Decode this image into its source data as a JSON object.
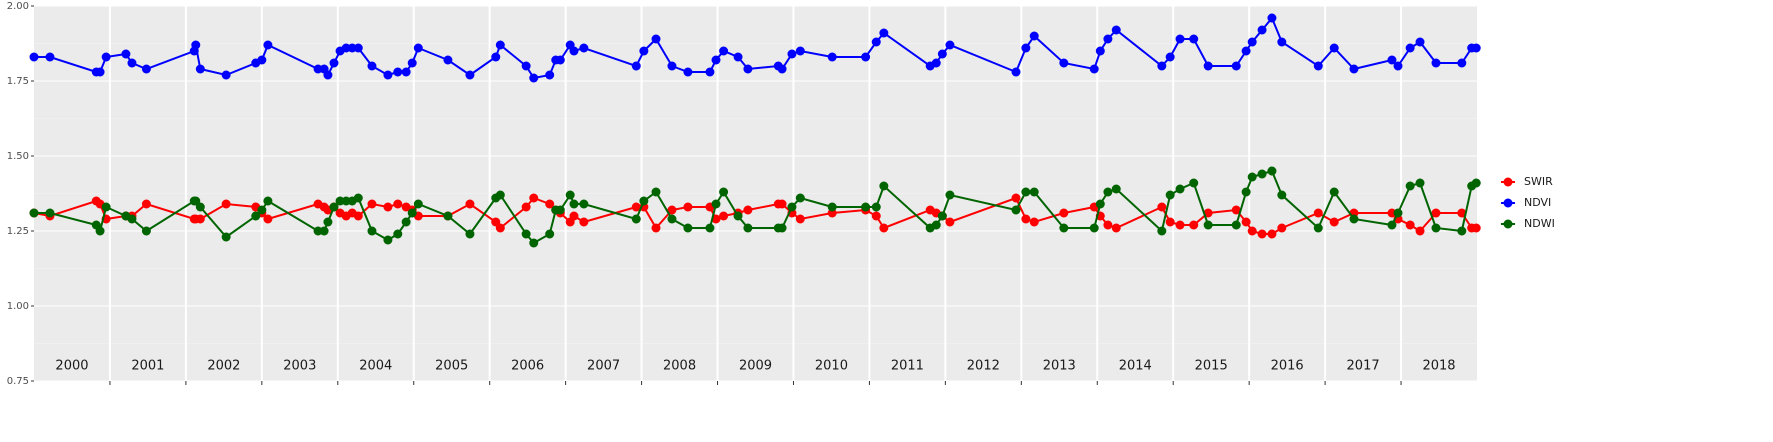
{
  "chart_data": {
    "type": "line",
    "x": [
      2000.0,
      2000.21,
      2000.82,
      2000.87,
      2000.95,
      2001.21,
      2001.29,
      2001.48,
      2002.11,
      2002.13,
      2002.19,
      2002.53,
      2002.92,
      2003.0,
      2003.08,
      2003.74,
      2003.82,
      2003.87,
      2003.95,
      2004.03,
      2004.11,
      2004.19,
      2004.27,
      2004.45,
      2004.66,
      2004.79,
      2004.9,
      2004.98,
      2005.06,
      2005.45,
      2005.74,
      2006.08,
      2006.14,
      2006.48,
      2006.58,
      2006.79,
      2006.87,
      2006.93,
      2007.06,
      2007.11,
      2007.24,
      2007.93,
      2008.03,
      2008.19,
      2008.4,
      2008.61,
      2008.9,
      2008.98,
      2009.08,
      2009.27,
      2009.4,
      2009.8,
      2009.85,
      2009.98,
      2010.09,
      2010.51,
      2010.95,
      2011.09,
      2011.19,
      2011.8,
      2011.88,
      2011.96,
      2012.06,
      2012.93,
      2013.06,
      2013.17,
      2013.56,
      2013.96,
      2014.04,
      2014.14,
      2014.25,
      2014.85,
      2014.96,
      2015.09,
      2015.27,
      2015.46,
      2015.83,
      2015.96,
      2016.04,
      2016.17,
      2016.3,
      2016.43,
      2016.91,
      2017.12,
      2017.38,
      2017.88,
      2017.96,
      2018.12,
      2018.25,
      2018.46,
      2018.8,
      2018.93,
      2018.99
    ],
    "series": [
      {
        "name": "SWIR",
        "color": "#ff0000",
        "values": [
          1.31,
          1.3,
          1.35,
          1.34,
          1.29,
          1.3,
          1.3,
          1.34,
          1.29,
          1.29,
          1.29,
          1.34,
          1.33,
          1.31,
          1.29,
          1.34,
          1.33,
          1.32,
          1.33,
          1.31,
          1.3,
          1.31,
          1.3,
          1.34,
          1.33,
          1.34,
          1.33,
          1.32,
          1.3,
          1.3,
          1.34,
          1.28,
          1.26,
          1.33,
          1.36,
          1.34,
          1.32,
          1.31,
          1.28,
          1.3,
          1.28,
          1.33,
          1.33,
          1.26,
          1.32,
          1.33,
          1.33,
          1.29,
          1.3,
          1.31,
          1.32,
          1.34,
          1.34,
          1.31,
          1.29,
          1.31,
          1.32,
          1.3,
          1.26,
          1.32,
          1.31,
          1.3,
          1.28,
          1.36,
          1.29,
          1.28,
          1.31,
          1.33,
          1.3,
          1.27,
          1.26,
          1.33,
          1.28,
          1.27,
          1.27,
          1.31,
          1.32,
          1.28,
          1.25,
          1.24,
          1.24,
          1.26,
          1.31,
          1.28,
          1.31,
          1.31,
          1.29,
          1.27,
          1.25,
          1.31,
          1.31,
          1.26,
          1.26
        ]
      },
      {
        "name": "NDVI",
        "color": "#0000ff",
        "values": [
          1.83,
          1.83,
          1.78,
          1.78,
          1.83,
          1.84,
          1.81,
          1.79,
          1.85,
          1.87,
          1.79,
          1.77,
          1.81,
          1.82,
          1.87,
          1.79,
          1.79,
          1.77,
          1.81,
          1.85,
          1.86,
          1.86,
          1.86,
          1.8,
          1.77,
          1.78,
          1.78,
          1.81,
          1.86,
          1.82,
          1.77,
          1.83,
          1.87,
          1.8,
          1.76,
          1.77,
          1.82,
          1.82,
          1.87,
          1.85,
          1.86,
          1.8,
          1.85,
          1.89,
          1.8,
          1.78,
          1.78,
          1.82,
          1.85,
          1.83,
          1.79,
          1.8,
          1.79,
          1.84,
          1.85,
          1.83,
          1.83,
          1.88,
          1.91,
          1.8,
          1.81,
          1.84,
          1.87,
          1.78,
          1.86,
          1.9,
          1.81,
          1.79,
          1.85,
          1.89,
          1.92,
          1.8,
          1.83,
          1.89,
          1.89,
          1.8,
          1.8,
          1.85,
          1.88,
          1.92,
          1.96,
          1.88,
          1.8,
          1.86,
          1.79,
          1.82,
          1.8,
          1.86,
          1.88,
          1.81,
          1.81,
          1.86,
          1.86
        ]
      },
      {
        "name": "NDWI",
        "color": "#006400",
        "values": [
          1.31,
          1.31,
          1.27,
          1.25,
          1.33,
          1.3,
          1.29,
          1.25,
          1.35,
          1.35,
          1.33,
          1.23,
          1.3,
          1.32,
          1.35,
          1.25,
          1.25,
          1.28,
          1.33,
          1.35,
          1.35,
          1.35,
          1.36,
          1.25,
          1.22,
          1.24,
          1.28,
          1.31,
          1.34,
          1.3,
          1.24,
          1.36,
          1.37,
          1.24,
          1.21,
          1.24,
          1.32,
          1.32,
          1.37,
          1.34,
          1.34,
          1.29,
          1.35,
          1.38,
          1.29,
          1.26,
          1.26,
          1.34,
          1.38,
          1.3,
          1.26,
          1.26,
          1.26,
          1.33,
          1.36,
          1.33,
          1.33,
          1.33,
          1.4,
          1.26,
          1.27,
          1.3,
          1.37,
          1.32,
          1.38,
          1.38,
          1.26,
          1.26,
          1.34,
          1.38,
          1.39,
          1.25,
          1.37,
          1.39,
          1.41,
          1.27,
          1.27,
          1.38,
          1.43,
          1.44,
          1.45,
          1.37,
          1.26,
          1.38,
          1.29,
          1.27,
          1.31,
          1.4,
          1.41,
          1.26,
          1.25,
          1.4,
          1.41
        ]
      }
    ],
    "xlim": [
      2000,
      2019
    ],
    "xticks": [
      {
        "value": 2000.5,
        "label": "2000"
      },
      {
        "value": 2001.5,
        "label": "2001"
      },
      {
        "value": 2002.5,
        "label": "2002"
      },
      {
        "value": 2003.5,
        "label": "2003"
      },
      {
        "value": 2004.5,
        "label": "2004"
      },
      {
        "value": 2005.5,
        "label": "2005"
      },
      {
        "value": 2006.5,
        "label": "2006"
      },
      {
        "value": 2007.5,
        "label": "2007"
      },
      {
        "value": 2008.5,
        "label": "2008"
      },
      {
        "value": 2009.5,
        "label": "2009"
      },
      {
        "value": 2010.5,
        "label": "2010"
      },
      {
        "value": 2011.5,
        "label": "2011"
      },
      {
        "value": 2012.5,
        "label": "2012"
      },
      {
        "value": 2013.5,
        "label": "2013"
      },
      {
        "value": 2014.5,
        "label": "2014"
      },
      {
        "value": 2015.5,
        "label": "2015"
      },
      {
        "value": 2016.5,
        "label": "2016"
      },
      {
        "value": 2017.5,
        "label": "2017"
      },
      {
        "value": 2018.5,
        "label": "2018"
      }
    ],
    "ylim": [
      0.75,
      2.0
    ],
    "yticks": [
      {
        "value": 0.75,
        "label": "0.75"
      },
      {
        "value": 1.0,
        "label": "1.00"
      },
      {
        "value": 1.25,
        "label": "1.25"
      },
      {
        "value": 1.5,
        "label": "1.50"
      },
      {
        "value": 1.75,
        "label": "1.75"
      },
      {
        "value": 2.0,
        "label": "2.00"
      }
    ],
    "grid": true,
    "legend": "right"
  }
}
